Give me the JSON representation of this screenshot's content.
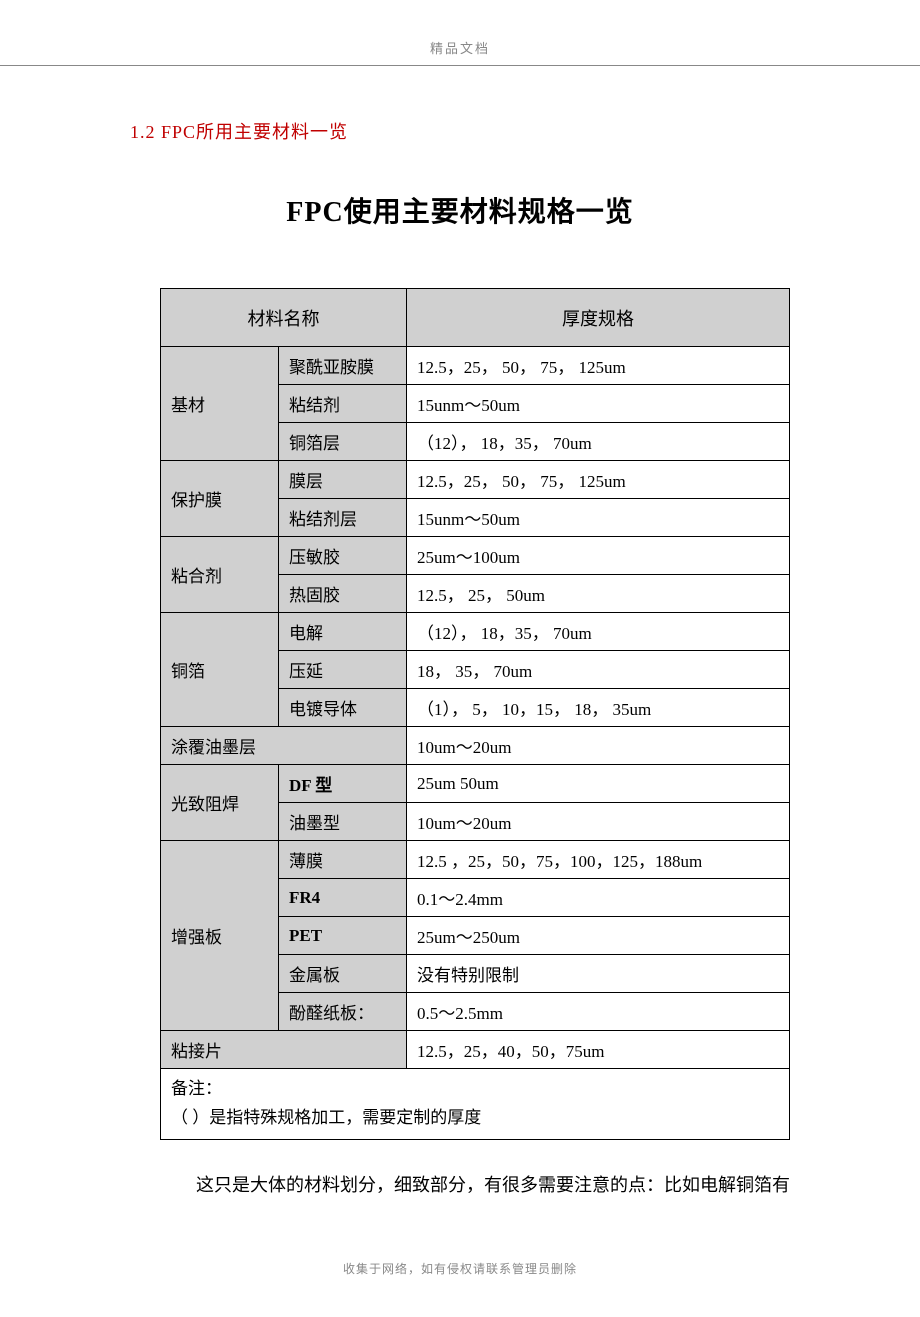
{
  "header_label": "精品文档",
  "section_num": "1.2  FPC所用主要材料一览",
  "page_title": "FPC使用主要材料规格一览",
  "table": {
    "header_col1": "材料名称",
    "header_col2": "厚度规格",
    "rows": [
      {
        "cat": "基材",
        "cat_rowspan": 3,
        "sub": "聚酰亚胺膜",
        "spec": "12.5，25，  50，  75，  125um"
      },
      {
        "sub": "粘结剂",
        "spec": "15unm～50um"
      },
      {
        "sub": "铜箔层",
        "spec": "（12），  18，35，  70um"
      },
      {
        "cat": "保护膜",
        "cat_rowspan": 2,
        "sub": "膜层",
        "spec": "12.5，25，  50，  75，  125um"
      },
      {
        "sub": "粘结剂层",
        "spec": "15unm～50um"
      },
      {
        "cat": "粘合剂",
        "cat_rowspan": 2,
        "sub": "压敏胶",
        "spec": "25um～100um"
      },
      {
        "sub": "热固胶",
        "spec": "12.5，  25，  50um"
      },
      {
        "cat": "铜箔",
        "cat_rowspan": 3,
        "sub": "电解",
        "spec": "（12），  18，35，  70um"
      },
      {
        "sub": "压延",
        "spec": "18，  35，  70um"
      },
      {
        "sub": "电镀导体",
        "spec": "（1），  5，  10，15，  18，  35um"
      },
      {
        "cat": "涂覆油墨层",
        "cat_colspan": 2,
        "spec": "10um～20um"
      },
      {
        "cat": "光致阻焊",
        "cat_rowspan": 2,
        "sub": "DF  型",
        "sub_bold": true,
        "spec": "25um    50um"
      },
      {
        "sub": "油墨型",
        "spec": "10um～20um"
      },
      {
        "cat": "增强板",
        "cat_rowspan": 5,
        "sub": "薄膜",
        "spec": "12.5 ，25，50，75，100，125，188um"
      },
      {
        "sub": "FR4",
        "sub_bold": true,
        "spec": "0.1～2.4mm"
      },
      {
        "sub": "PET",
        "sub_bold": true,
        "spec": "25um～250um"
      },
      {
        "sub": "金属板",
        "spec": "没有特别限制"
      },
      {
        "sub": "酚醛纸板：",
        "spec": "0.5～2.5mm"
      },
      {
        "cat": "粘接片",
        "cat_colspan": 2,
        "spec": "12.5，25，40，50，75um"
      }
    ],
    "note_line1": "备注：",
    "note_line2": "（    ）是指特殊规格加工，需要定制的厚度"
  },
  "body_text": "这只是大体的材料划分，细致部分，有很多需要注意的点：比如电解铜箔有",
  "footer_label": "收集于网络，如有侵权请联系管理员删除"
}
